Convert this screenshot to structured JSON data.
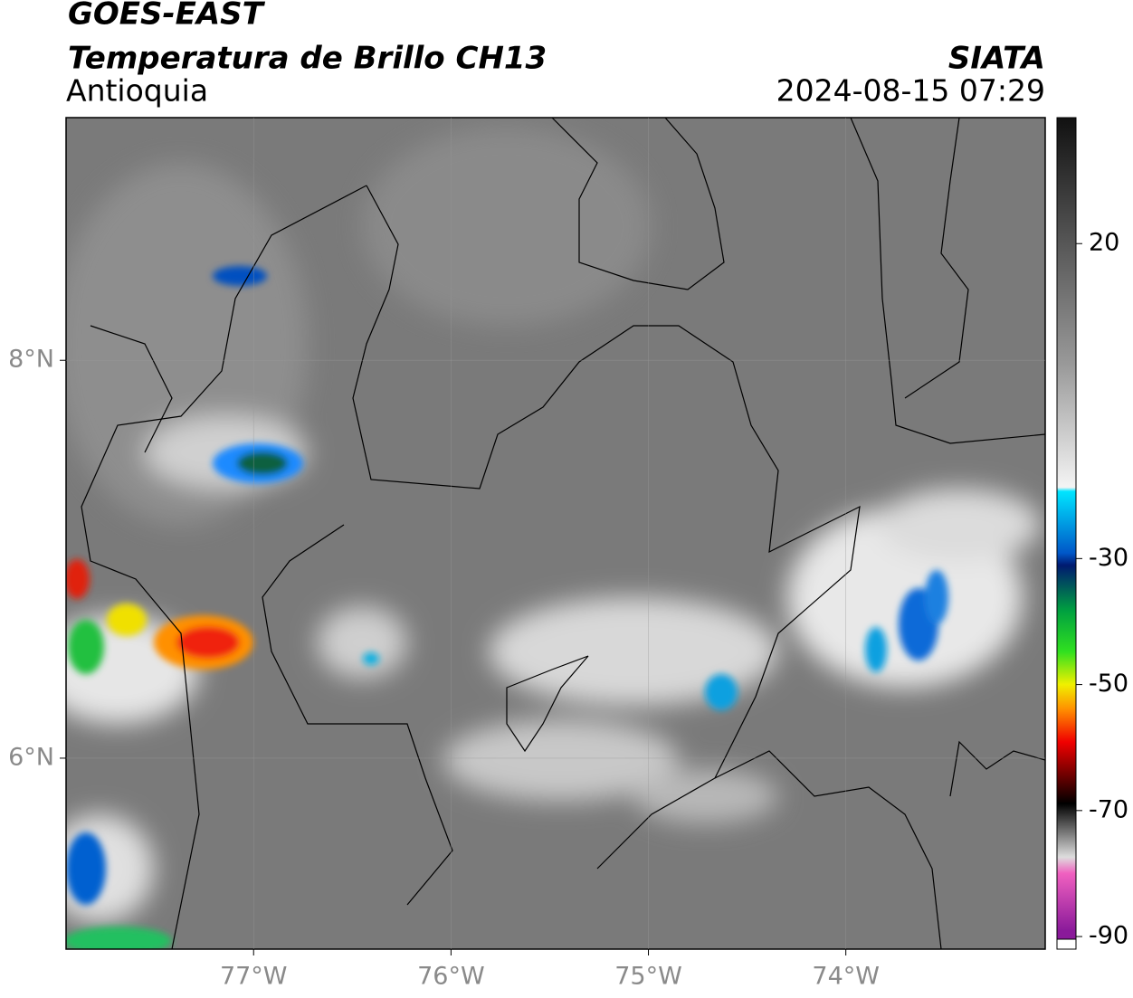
{
  "header": {
    "title": "GOES-EAST",
    "subtitle": "Temperatura de Brillo CH13",
    "region": "Antioquia",
    "agency": "SIATA",
    "timestamp": "2024-08-15 07:29"
  },
  "map": {
    "lonlim": [
      -77.95,
      -72.99
    ],
    "latlim": [
      5.04,
      9.22
    ],
    "lon_ticks": [
      {
        "value": -77,
        "label": "77°W"
      },
      {
        "value": -76,
        "label": "76°W"
      },
      {
        "value": -75,
        "label": "75°W"
      },
      {
        "value": -74,
        "label": "74°W"
      }
    ],
    "lat_ticks": [
      {
        "value": 8,
        "label": "8°N"
      },
      {
        "value": 6,
        "label": "6°N"
      }
    ]
  },
  "colorbar": {
    "lim": [
      -92,
      40
    ],
    "ticks": [
      20,
      -30,
      -50,
      -70,
      -90
    ]
  }
}
